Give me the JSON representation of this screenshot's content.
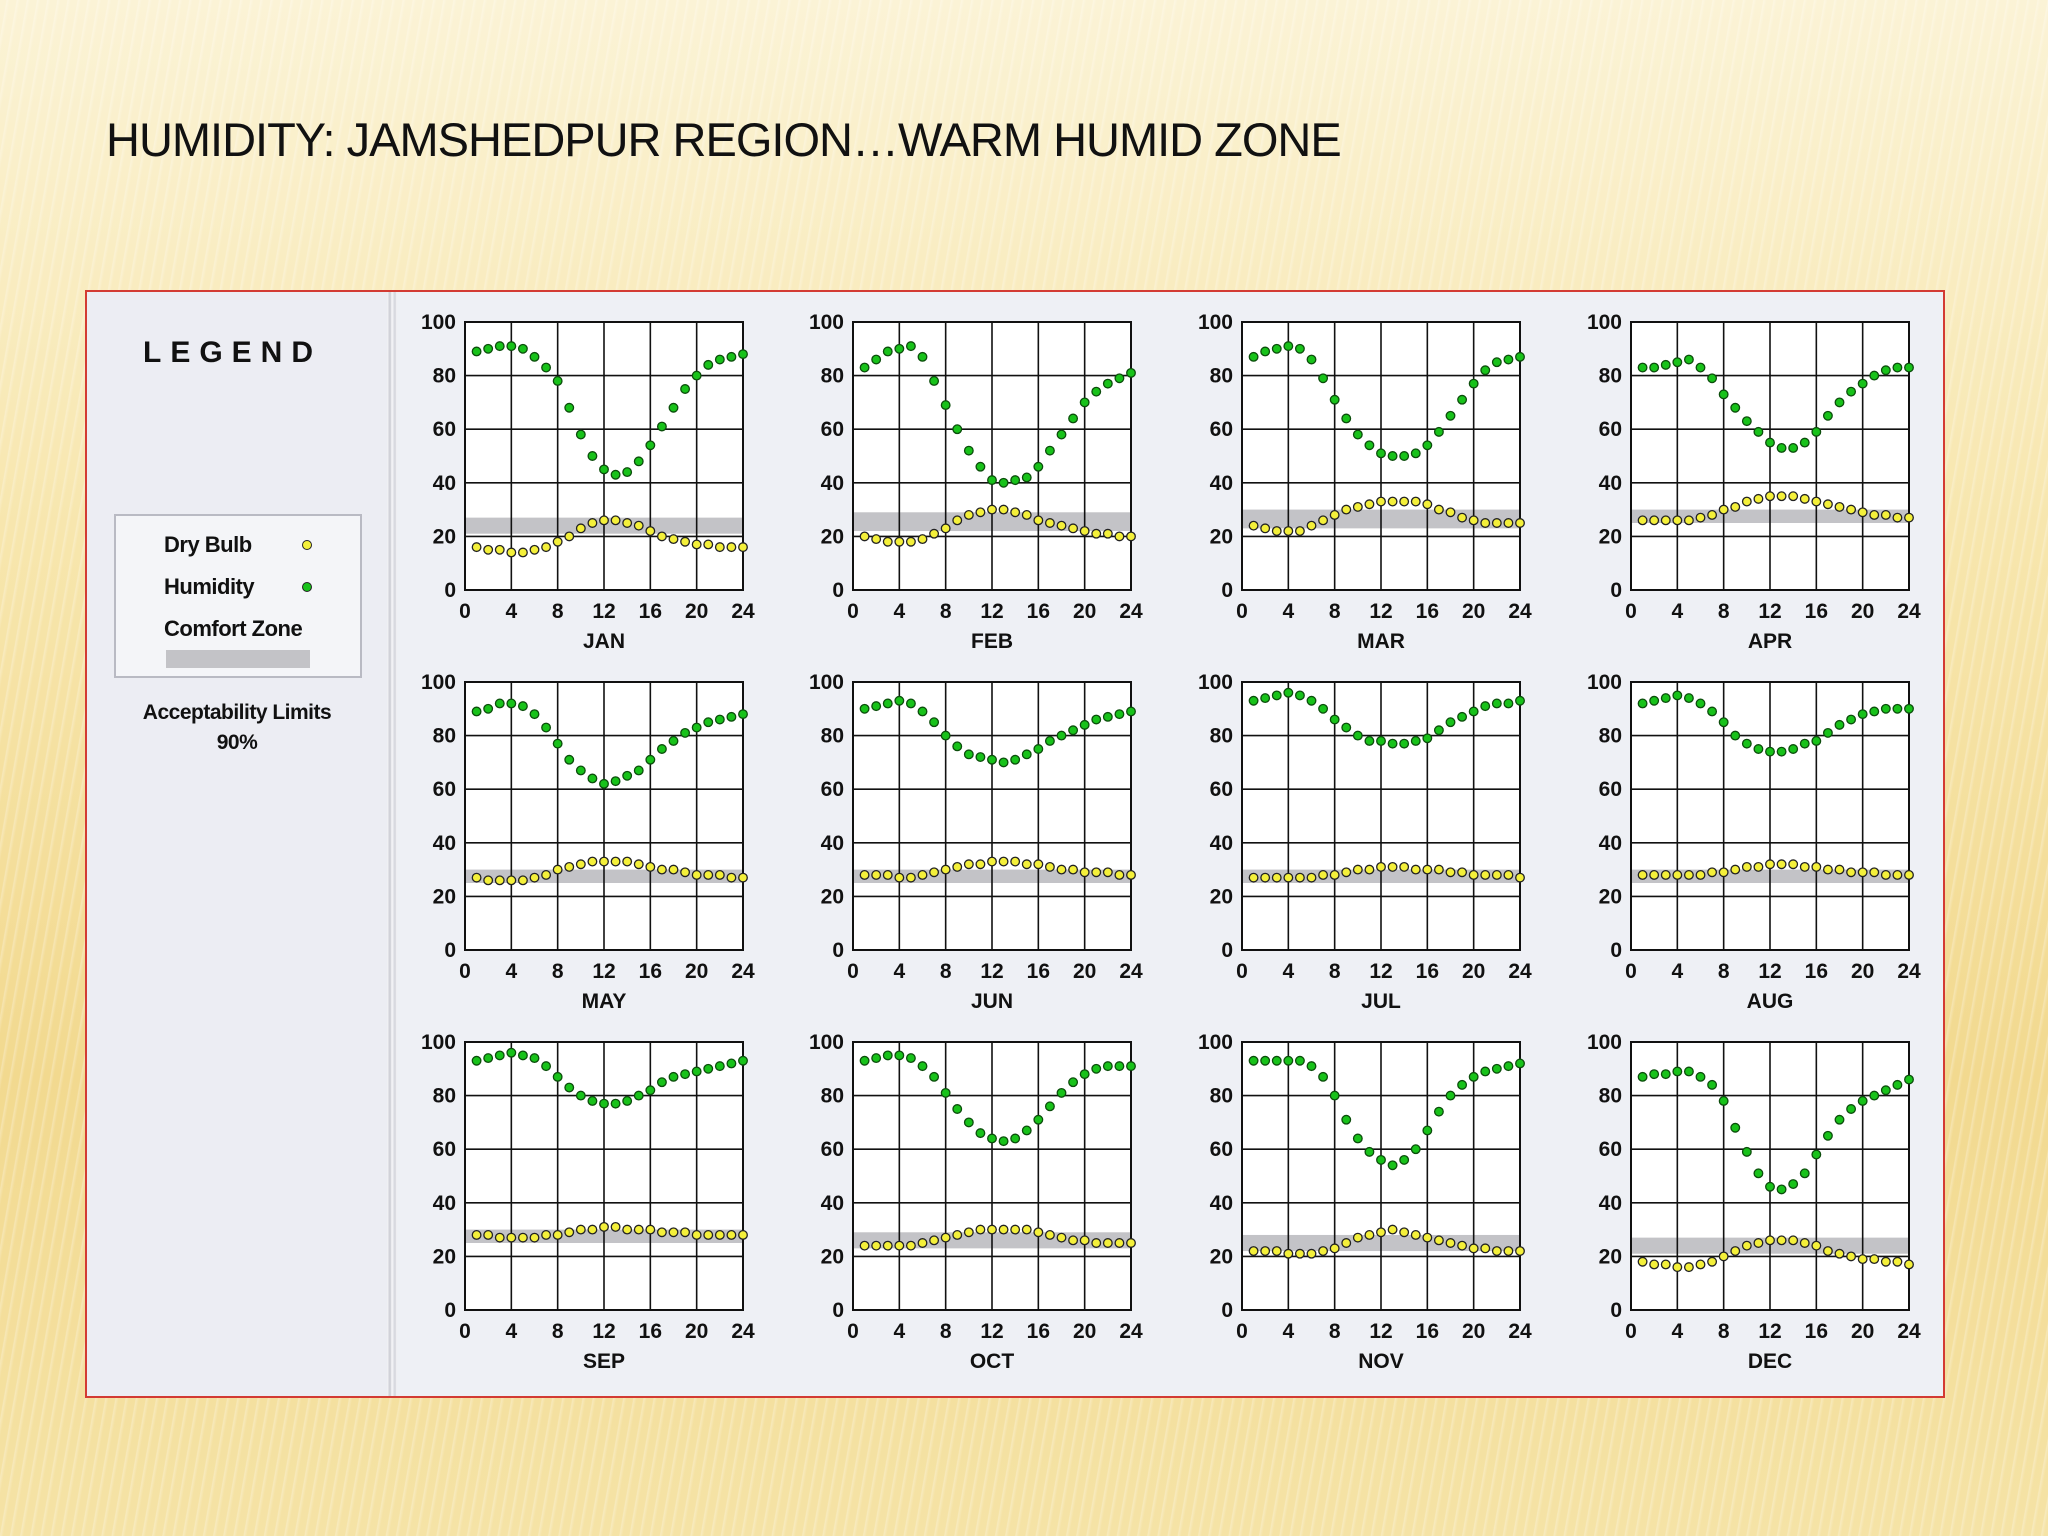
{
  "title": "HUMIDITY: JAMSHEDPUR REGION…WARM HUMID ZONE",
  "legend": {
    "heading": "LEGEND",
    "dry_bulb": "Dry Bulb",
    "humidity": "Humidity",
    "comfort_zone": "Comfort Zone",
    "acceptability_title": "Acceptability Limits",
    "acceptability_value": "90%"
  },
  "colors": {
    "humidity": "#18c21a",
    "dry_bulb": "#f4f03a",
    "comfort_zone": "#c3c3c7",
    "panel_border": "#d33b33"
  },
  "chart_data": {
    "type": "scatter",
    "x": [
      1,
      2,
      3,
      4,
      5,
      6,
      7,
      8,
      9,
      10,
      11,
      12,
      13,
      14,
      15,
      16,
      17,
      18,
      19,
      20,
      21,
      22,
      23,
      24
    ],
    "xticks": [
      0,
      4,
      8,
      12,
      16,
      20,
      24
    ],
    "yticks": [
      0,
      20,
      40,
      60,
      80,
      100
    ],
    "xlim": [
      0,
      24
    ],
    "ylim": [
      0,
      100
    ],
    "grid": true,
    "panels": [
      {
        "label": "JAN",
        "comfort_zone": [
          21,
          27
        ],
        "humidity": [
          89,
          90,
          91,
          91,
          90,
          87,
          83,
          78,
          68,
          58,
          50,
          45,
          43,
          44,
          48,
          54,
          61,
          68,
          75,
          80,
          84,
          86,
          87,
          88
        ],
        "dry_bulb": [
          16,
          15,
          15,
          14,
          14,
          15,
          16,
          18,
          20,
          23,
          25,
          26,
          26,
          25,
          24,
          22,
          20,
          19,
          18,
          17,
          17,
          16,
          16,
          16
        ]
      },
      {
        "label": "FEB",
        "comfort_zone": [
          22,
          29
        ],
        "humidity": [
          83,
          86,
          89,
          90,
          91,
          87,
          78,
          69,
          60,
          52,
          46,
          41,
          40,
          41,
          42,
          46,
          52,
          58,
          64,
          70,
          74,
          77,
          79,
          81
        ],
        "dry_bulb": [
          20,
          19,
          18,
          18,
          18,
          19,
          21,
          23,
          26,
          28,
          29,
          30,
          30,
          29,
          28,
          26,
          25,
          24,
          23,
          22,
          21,
          21,
          20,
          20
        ]
      },
      {
        "label": "MAR",
        "comfort_zone": [
          23,
          30
        ],
        "humidity": [
          87,
          89,
          90,
          91,
          90,
          86,
          79,
          71,
          64,
          58,
          54,
          51,
          50,
          50,
          51,
          54,
          59,
          65,
          71,
          77,
          82,
          85,
          86,
          87
        ],
        "dry_bulb": [
          24,
          23,
          22,
          22,
          22,
          24,
          26,
          28,
          30,
          31,
          32,
          33,
          33,
          33,
          33,
          32,
          30,
          29,
          27,
          26,
          25,
          25,
          25,
          25
        ]
      },
      {
        "label": "APR",
        "comfort_zone": [
          25,
          30
        ],
        "humidity": [
          83,
          83,
          84,
          85,
          86,
          83,
          79,
          73,
          68,
          63,
          59,
          55,
          53,
          53,
          55,
          59,
          65,
          70,
          74,
          77,
          80,
          82,
          83,
          83
        ],
        "dry_bulb": [
          26,
          26,
          26,
          26,
          26,
          27,
          28,
          30,
          31,
          33,
          34,
          35,
          35,
          35,
          34,
          33,
          32,
          31,
          30,
          29,
          28,
          28,
          27,
          27
        ]
      },
      {
        "label": "MAY",
        "comfort_zone": [
          25,
          30
        ],
        "humidity": [
          89,
          90,
          92,
          92,
          91,
          88,
          83,
          77,
          71,
          67,
          64,
          62,
          63,
          65,
          67,
          71,
          75,
          78,
          81,
          83,
          85,
          86,
          87,
          88
        ],
        "dry_bulb": [
          27,
          26,
          26,
          26,
          26,
          27,
          28,
          30,
          31,
          32,
          33,
          33,
          33,
          33,
          32,
          31,
          30,
          30,
          29,
          28,
          28,
          28,
          27,
          27
        ]
      },
      {
        "label": "JUN",
        "comfort_zone": [
          25,
          30
        ],
        "humidity": [
          90,
          91,
          92,
          93,
          92,
          89,
          85,
          80,
          76,
          73,
          72,
          71,
          70,
          71,
          73,
          75,
          78,
          80,
          82,
          84,
          86,
          87,
          88,
          89
        ],
        "dry_bulb": [
          28,
          28,
          28,
          27,
          27,
          28,
          29,
          30,
          31,
          32,
          32,
          33,
          33,
          33,
          32,
          32,
          31,
          30,
          30,
          29,
          29,
          29,
          28,
          28
        ]
      },
      {
        "label": "JUL",
        "comfort_zone": [
          25,
          30
        ],
        "humidity": [
          93,
          94,
          95,
          96,
          95,
          93,
          90,
          86,
          83,
          80,
          78,
          78,
          77,
          77,
          78,
          79,
          82,
          85,
          87,
          89,
          91,
          92,
          92,
          93
        ],
        "dry_bulb": [
          27,
          27,
          27,
          27,
          27,
          27,
          28,
          28,
          29,
          30,
          30,
          31,
          31,
          31,
          30,
          30,
          30,
          29,
          29,
          28,
          28,
          28,
          28,
          27
        ]
      },
      {
        "label": "AUG",
        "comfort_zone": [
          25,
          30
        ],
        "humidity": [
          92,
          93,
          94,
          95,
          94,
          92,
          89,
          85,
          80,
          77,
          75,
          74,
          74,
          75,
          77,
          78,
          81,
          84,
          86,
          88,
          89,
          90,
          90,
          90
        ],
        "dry_bulb": [
          28,
          28,
          28,
          28,
          28,
          28,
          29,
          29,
          30,
          31,
          31,
          32,
          32,
          32,
          31,
          31,
          30,
          30,
          29,
          29,
          29,
          28,
          28,
          28
        ]
      },
      {
        "label": "SEP",
        "comfort_zone": [
          25,
          30
        ],
        "humidity": [
          93,
          94,
          95,
          96,
          95,
          94,
          91,
          87,
          83,
          80,
          78,
          77,
          77,
          78,
          80,
          82,
          85,
          87,
          88,
          89,
          90,
          91,
          92,
          93
        ],
        "dry_bulb": [
          28,
          28,
          27,
          27,
          27,
          27,
          28,
          28,
          29,
          30,
          30,
          31,
          31,
          30,
          30,
          30,
          29,
          29,
          29,
          28,
          28,
          28,
          28,
          28
        ]
      },
      {
        "label": "OCT",
        "comfort_zone": [
          23,
          29
        ],
        "humidity": [
          93,
          94,
          95,
          95,
          94,
          91,
          87,
          81,
          75,
          70,
          66,
          64,
          63,
          64,
          67,
          71,
          76,
          81,
          85,
          88,
          90,
          91,
          91,
          91
        ],
        "dry_bulb": [
          24,
          24,
          24,
          24,
          24,
          25,
          26,
          27,
          28,
          29,
          30,
          30,
          30,
          30,
          30,
          29,
          28,
          27,
          26,
          26,
          25,
          25,
          25,
          25
        ]
      },
      {
        "label": "NOV",
        "comfort_zone": [
          22,
          28
        ],
        "humidity": [
          93,
          93,
          93,
          93,
          93,
          91,
          87,
          80,
          71,
          64,
          59,
          56,
          54,
          56,
          60,
          67,
          74,
          80,
          84,
          87,
          89,
          90,
          91,
          92
        ],
        "dry_bulb": [
          22,
          22,
          22,
          21,
          21,
          21,
          22,
          23,
          25,
          27,
          28,
          29,
          30,
          29,
          28,
          27,
          26,
          25,
          24,
          23,
          23,
          22,
          22,
          22
        ]
      },
      {
        "label": "DEC",
        "comfort_zone": [
          21,
          27
        ],
        "humidity": [
          87,
          88,
          88,
          89,
          89,
          87,
          84,
          78,
          68,
          59,
          51,
          46,
          45,
          47,
          51,
          58,
          65,
          71,
          75,
          78,
          80,
          82,
          84,
          86
        ],
        "dry_bulb": [
          18,
          17,
          17,
          16,
          16,
          17,
          18,
          20,
          22,
          24,
          25,
          26,
          26,
          26,
          25,
          24,
          22,
          21,
          20,
          19,
          19,
          18,
          18,
          17
        ]
      }
    ]
  }
}
